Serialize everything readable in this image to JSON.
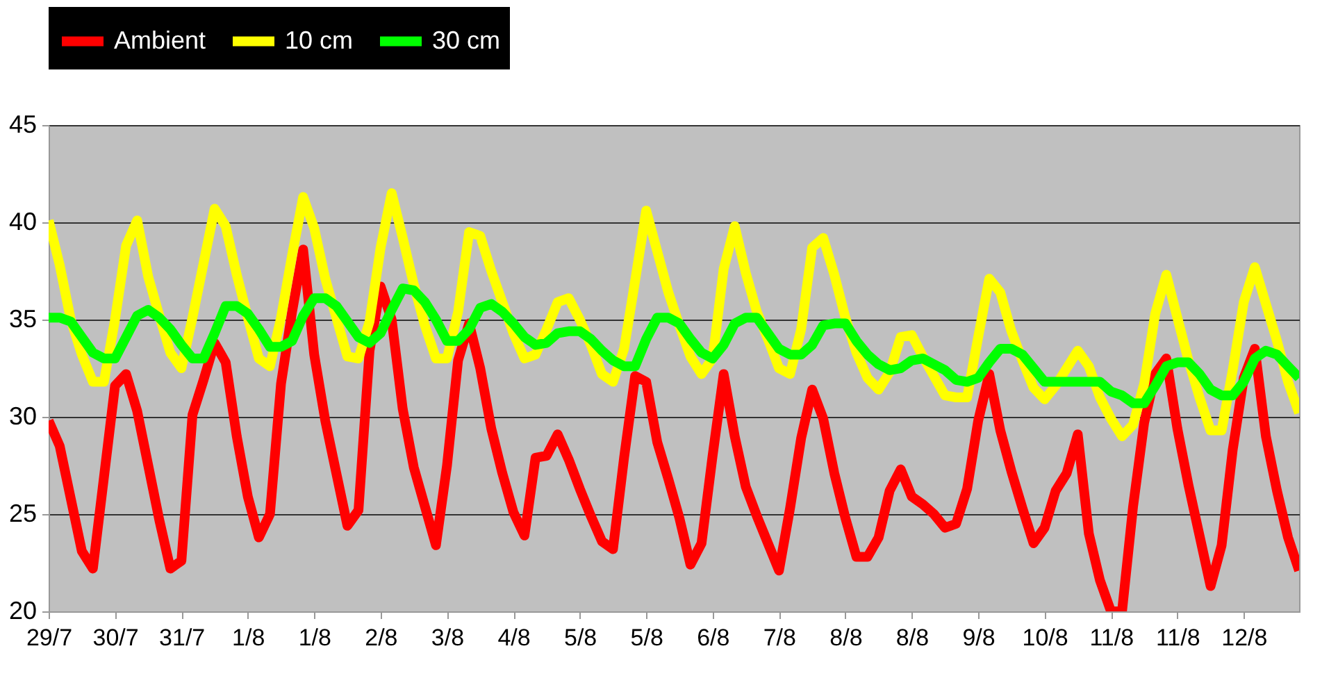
{
  "chart_data": {
    "type": "line",
    "legend": "top",
    "grid": "y",
    "marker": "none",
    "line_style": "solid",
    "ylim": [
      20,
      45
    ],
    "yticks": [
      20,
      25,
      30,
      35,
      40,
      45
    ],
    "categories": [
      "29/7",
      null,
      null,
      null,
      null,
      null,
      "30/7",
      null,
      null,
      null,
      null,
      null,
      "31/7",
      null,
      null,
      null,
      null,
      null,
      "1/8",
      null,
      null,
      null,
      null,
      null,
      "1/8",
      null,
      null,
      null,
      null,
      null,
      "2/8",
      null,
      null,
      null,
      null,
      null,
      "3/8",
      null,
      null,
      null,
      null,
      null,
      "4/8",
      null,
      null,
      null,
      null,
      null,
      "5/8",
      null,
      null,
      null,
      null,
      null,
      "5/8",
      null,
      null,
      null,
      null,
      null,
      "6/8",
      null,
      null,
      null,
      null,
      null,
      "7/8",
      null,
      null,
      null,
      null,
      null,
      "8/8",
      null,
      null,
      null,
      null,
      null,
      "8/8",
      null,
      null,
      null,
      null,
      null,
      "9/8",
      null,
      null,
      null,
      null,
      null,
      "10/8",
      null,
      null,
      null,
      null,
      null,
      "11/8",
      null,
      null,
      null,
      null,
      null,
      "11/8",
      null,
      null,
      null,
      null,
      null,
      "12/8",
      null,
      null,
      null,
      null,
      null
    ],
    "series": [
      {
        "name": "Ambient",
        "color": "#ff0000",
        "values": [
          29.8,
          28.5,
          25.8,
          23.1,
          22.2,
          26.9,
          31.6,
          32.2,
          30.3,
          27.5,
          24.7,
          22.2,
          22.6,
          30.1,
          31.9,
          33.8,
          32.8,
          29.0,
          25.9,
          23.8,
          25.0,
          31.7,
          35.4,
          38.6,
          33.2,
          29.8,
          27.1,
          24.4,
          25.2,
          33.4,
          36.7,
          35.0,
          30.4,
          27.4,
          25.4,
          23.4,
          27.5,
          32.9,
          34.8,
          32.5,
          29.4,
          27.1,
          25.1,
          23.9,
          27.9,
          28.0,
          29.1,
          27.8,
          26.3,
          24.9,
          23.6,
          23.2,
          27.9,
          32.1,
          31.8,
          28.7,
          26.8,
          24.8,
          22.4,
          23.5,
          28.0,
          32.2,
          29.0,
          26.4,
          24.9,
          23.5,
          22.1,
          25.3,
          28.9,
          31.4,
          29.9,
          27.1,
          24.8,
          22.8,
          22.8,
          23.8,
          26.2,
          27.3,
          25.9,
          25.5,
          25.0,
          24.3,
          24.5,
          26.3,
          29.8,
          32.2,
          29.3,
          27.2,
          25.3,
          23.5,
          24.3,
          26.2,
          27.1,
          29.1,
          24.0,
          21.6,
          20.0,
          20.0,
          25.4,
          29.7,
          32.2,
          33.0,
          29.4,
          26.5,
          23.9,
          21.3,
          23.4,
          28.3,
          32.0,
          33.5,
          29.0,
          26.2,
          23.8,
          22.1
        ]
      },
      {
        "name": "10 cm",
        "color": "#ffff00",
        "values": [
          40.1,
          37.8,
          35.0,
          33.2,
          31.8,
          31.8,
          35.0,
          38.8,
          40.1,
          37.2,
          35.2,
          33.3,
          32.5,
          35.1,
          37.9,
          40.7,
          39.8,
          37.3,
          35.1,
          33.0,
          32.6,
          35.1,
          38.3,
          41.3,
          39.7,
          37.1,
          35.1,
          33.1,
          33.0,
          34.9,
          38.7,
          41.5,
          39.2,
          36.8,
          34.7,
          33.0,
          33.0,
          35.4,
          39.5,
          39.3,
          37.5,
          35.9,
          34.3,
          33.0,
          33.2,
          34.5,
          35.9,
          36.1,
          35.0,
          33.7,
          32.2,
          31.8,
          33.5,
          37.0,
          40.6,
          38.5,
          36.4,
          34.7,
          33.1,
          32.2,
          33.0,
          37.6,
          39.8,
          37.4,
          35.4,
          34.0,
          32.5,
          32.2,
          34.5,
          38.7,
          39.2,
          37.3,
          35.1,
          33.3,
          32.0,
          31.4,
          32.3,
          34.1,
          34.2,
          33.1,
          32.1,
          31.1,
          31.0,
          31.0,
          34.1,
          37.1,
          36.4,
          34.4,
          32.9,
          31.5,
          30.9,
          31.6,
          32.5,
          33.4,
          32.6,
          31.0,
          29.9,
          29.0,
          29.6,
          31.7,
          35.3,
          37.3,
          35.1,
          32.9,
          31.0,
          29.3,
          29.3,
          32.4,
          35.9,
          37.7,
          35.8,
          33.9,
          31.8,
          30.2
        ]
      },
      {
        "name": "30 cm",
        "color": "#00ff00",
        "values": [
          35.1,
          35.1,
          34.9,
          34.1,
          33.3,
          33.0,
          33.0,
          34.1,
          35.2,
          35.5,
          35.1,
          34.5,
          33.7,
          33.0,
          33.0,
          34.3,
          35.7,
          35.7,
          35.3,
          34.5,
          33.6,
          33.6,
          33.9,
          35.2,
          36.1,
          36.1,
          35.7,
          34.9,
          34.1,
          33.8,
          34.3,
          35.5,
          36.6,
          36.5,
          35.9,
          35.0,
          33.9,
          33.9,
          34.5,
          35.6,
          35.8,
          35.4,
          34.8,
          34.1,
          33.7,
          33.8,
          34.3,
          34.4,
          34.4,
          34.0,
          33.4,
          32.9,
          32.6,
          32.6,
          34.0,
          35.1,
          35.1,
          34.8,
          34.0,
          33.3,
          33.0,
          33.7,
          34.8,
          35.1,
          35.1,
          34.3,
          33.5,
          33.2,
          33.2,
          33.7,
          34.7,
          34.8,
          34.8,
          33.9,
          33.2,
          32.7,
          32.4,
          32.5,
          32.9,
          33.0,
          32.7,
          32.4,
          31.9,
          31.8,
          32.0,
          32.8,
          33.5,
          33.5,
          33.2,
          32.5,
          31.8,
          31.8,
          31.8,
          31.8,
          31.8,
          31.8,
          31.3,
          31.1,
          30.7,
          30.7,
          31.6,
          32.6,
          32.8,
          32.8,
          32.2,
          31.4,
          31.1,
          31.1,
          31.8,
          33.0,
          33.4,
          33.2,
          32.6,
          32.0
        ]
      }
    ]
  }
}
